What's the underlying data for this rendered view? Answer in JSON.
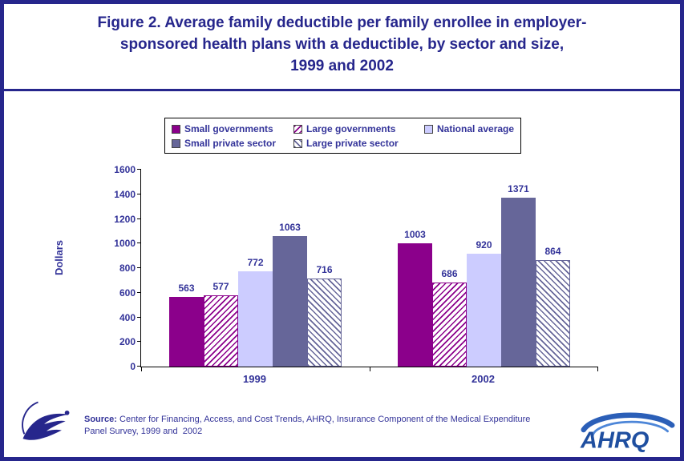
{
  "title": {
    "lines": [
      "Figure 2. Average family deductible per family enrollee in employer-",
      "sponsored health plans with a deductible, by sector and size,",
      "1999 and 2002"
    ]
  },
  "chart_data": {
    "type": "bar",
    "categories": [
      "1999",
      "2002"
    ],
    "series": [
      {
        "name": "Small governments",
        "values": [
          563,
          1003
        ],
        "color": "#8B008B",
        "pattern": "solid"
      },
      {
        "name": "Large governments",
        "values": [
          577,
          686
        ],
        "color": "#8B008B",
        "pattern": "hatch-up"
      },
      {
        "name": "National average",
        "values": [
          772,
          920
        ],
        "color": "#CCCCFF",
        "pattern": "solid"
      },
      {
        "name": "Small private sector",
        "values": [
          1063,
          1371
        ],
        "color": "#666699",
        "pattern": "solid"
      },
      {
        "name": "Large private sector",
        "values": [
          716,
          864
        ],
        "color": "#666699",
        "pattern": "hatch-down"
      }
    ],
    "ylabel": "Dollars",
    "xlabel": "",
    "ylim": [
      0,
      1600
    ],
    "ytick_step": 200,
    "grid": false,
    "legend_position": "top",
    "value_labels": true
  },
  "colors": {
    "border_navy": "#26268C",
    "title_navy": "#26268C",
    "chart_text_navy": "#333399"
  },
  "footer": {
    "source_label": "Source:",
    "line1_rest": " Center for Financing, Access, and Cost Trends, AHRQ, Insurance Component of the Medical Expenditure",
    "line2": "Panel Survey, 1999 and  2002",
    "ahrq_text": "AHRQ"
  }
}
